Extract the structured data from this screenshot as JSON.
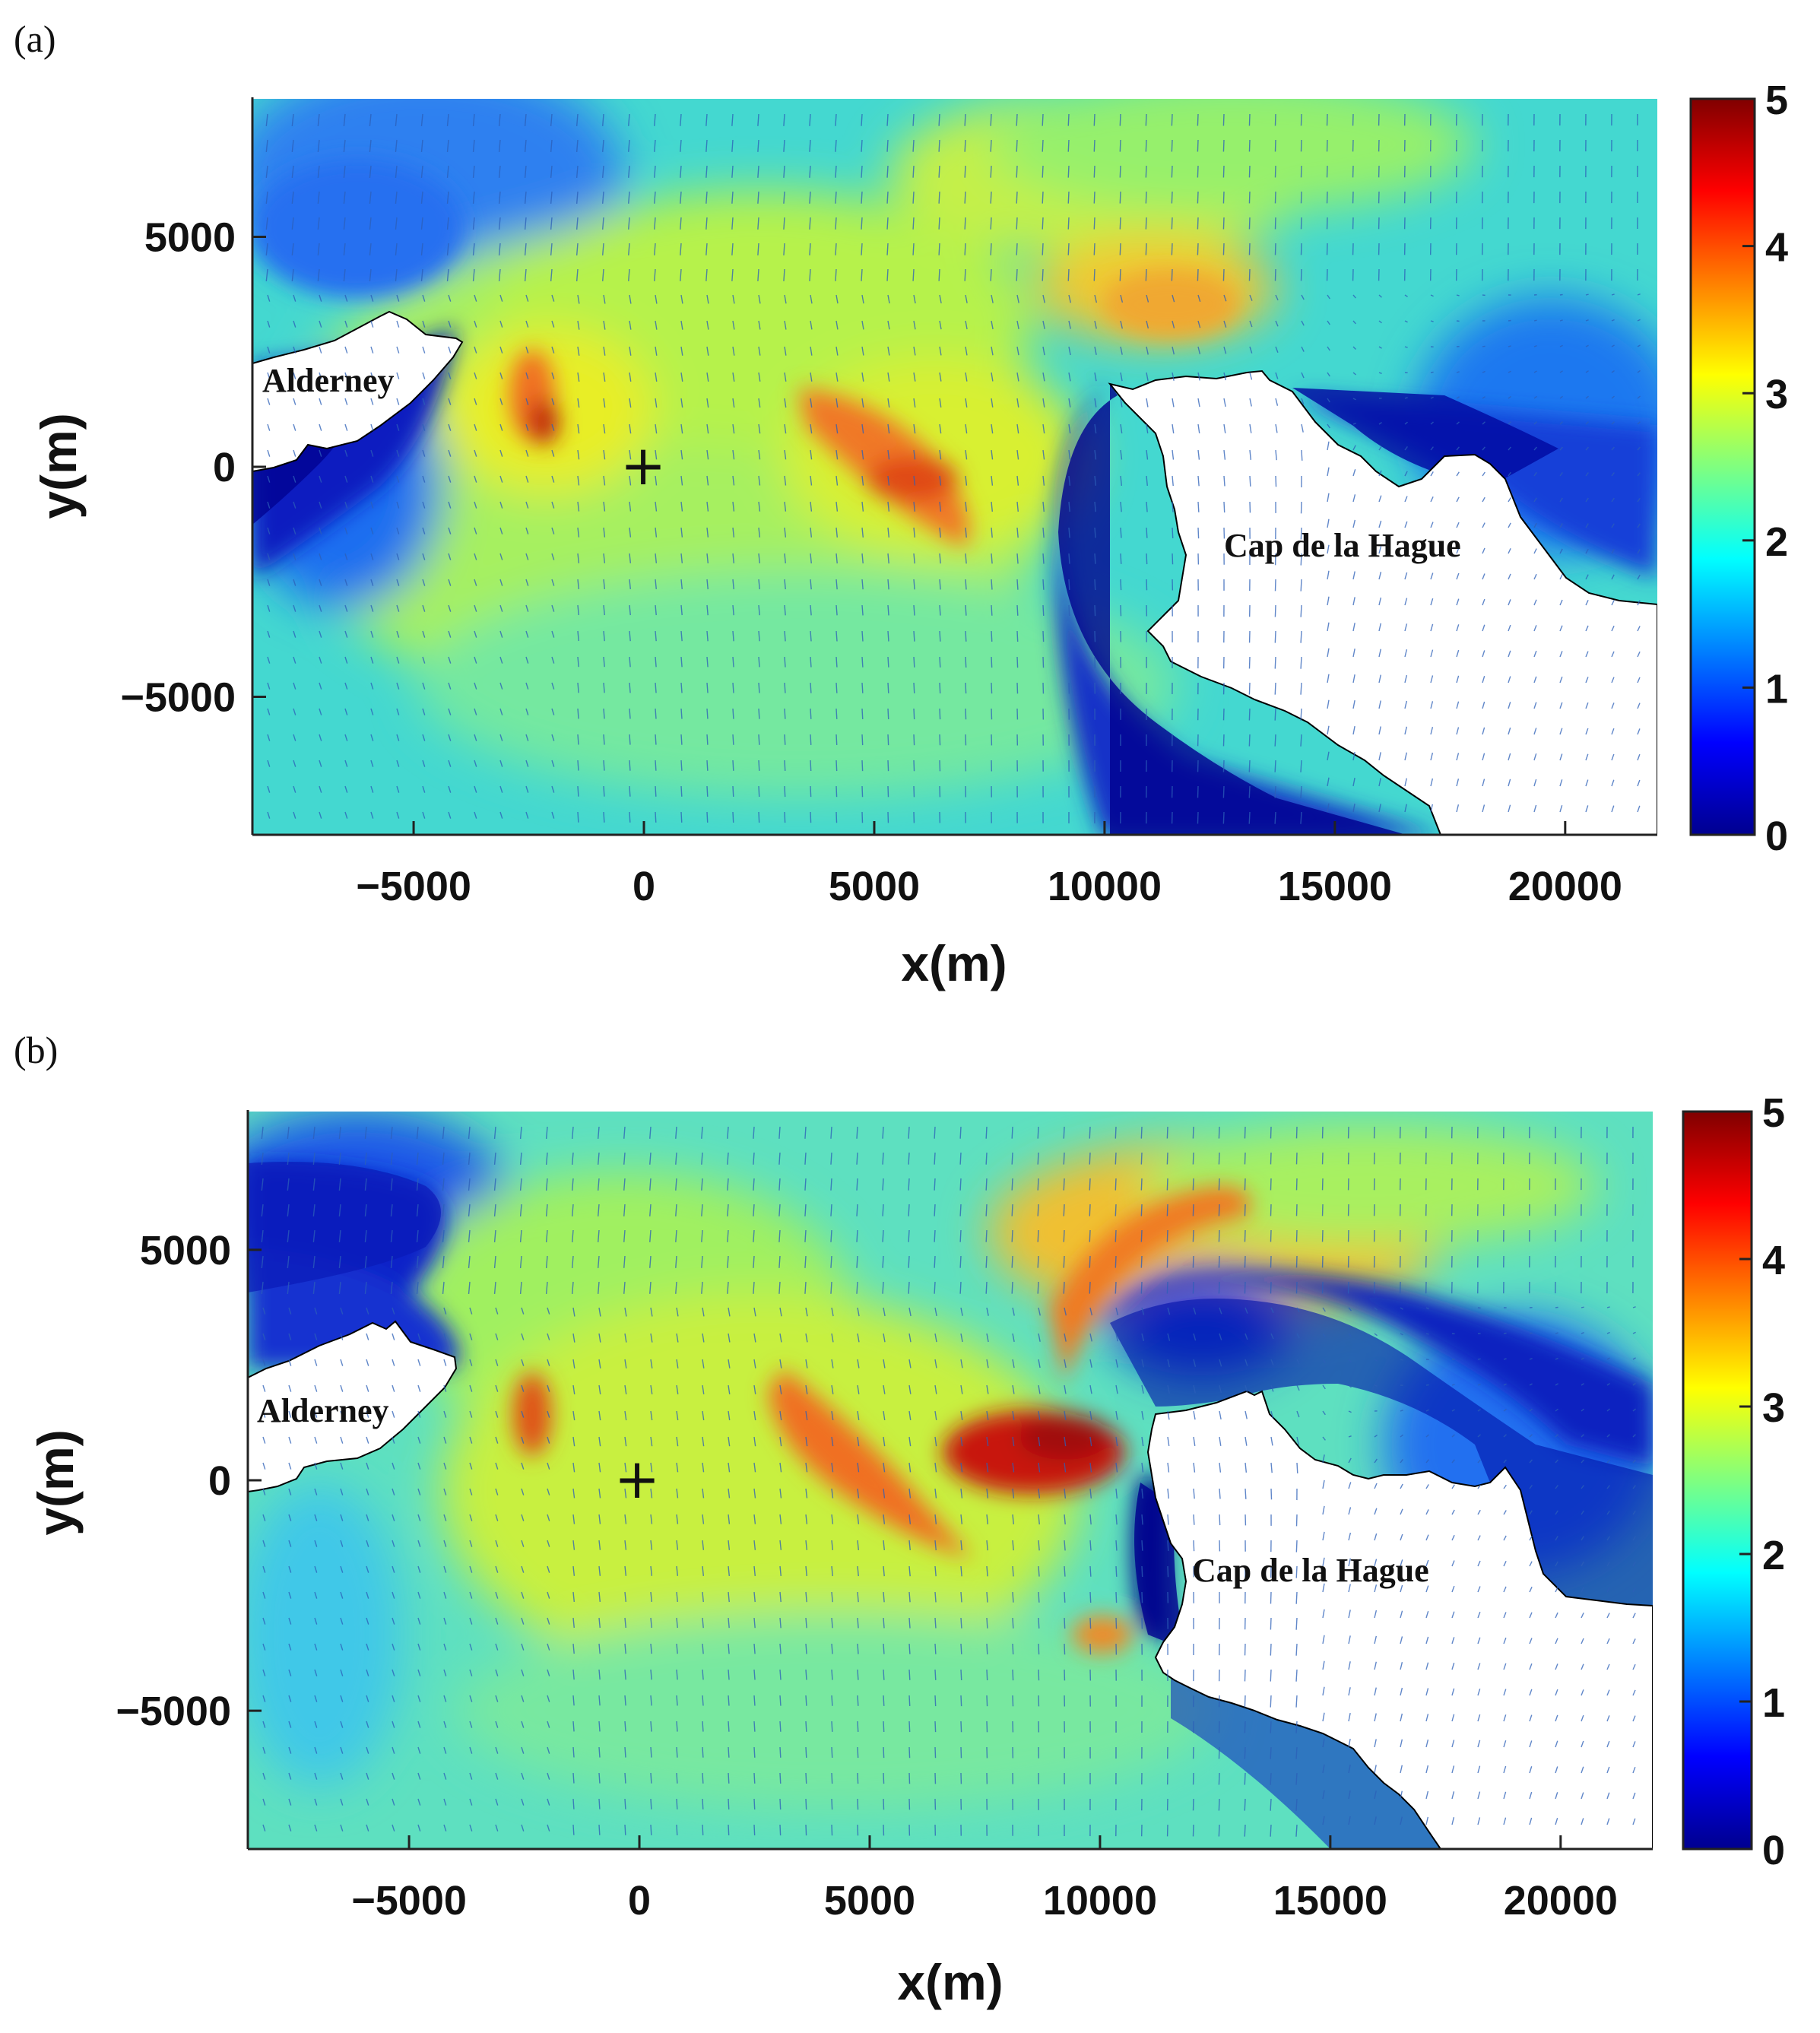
{
  "panels": [
    {
      "label": "(a)",
      "place_names": [
        "Alderney",
        "Cap de la Hague"
      ],
      "marker": "+"
    },
    {
      "label": "(b)",
      "place_names": [
        "Alderney",
        "Cap de la Hague"
      ],
      "marker": "+"
    }
  ],
  "chart_data": [
    {
      "type": "heatmap",
      "panel": "(a)",
      "xlabel": "x(m)",
      "ylabel": "y(m)",
      "xlim": [
        -8500,
        22000
      ],
      "ylim": [
        -8000,
        8000
      ],
      "xticks": [
        -5000,
        0,
        5000,
        10000,
        15000,
        20000
      ],
      "xtick_labels": [
        "−5000",
        "0",
        "5000",
        "10000",
        "15000",
        "20000"
      ],
      "yticks": [
        -5000,
        0,
        5000
      ],
      "ytick_labels": [
        "−5000",
        "0",
        "5000"
      ],
      "colorbar": {
        "min": 0,
        "max": 5,
        "ticks": [
          0,
          1,
          2,
          3,
          4,
          5
        ],
        "colormap": "jet"
      },
      "vectors": "quiver",
      "annotations": [
        {
          "text": "Alderney",
          "x": -6700,
          "y": 1900
        },
        {
          "text": "Cap de la Hague",
          "x": 15600,
          "y": -1700
        },
        {
          "text": "+",
          "x": 0,
          "y": 0
        }
      ]
    },
    {
      "type": "heatmap",
      "panel": "(b)",
      "xlabel": "x(m)",
      "ylabel": "y(m)",
      "xlim": [
        -8500,
        22000
      ],
      "ylim": [
        -8000,
        8000
      ],
      "xticks": [
        -5000,
        0,
        5000,
        10000,
        15000,
        20000
      ],
      "xtick_labels": [
        "−5000",
        "0",
        "5000",
        "10000",
        "15000",
        "20000"
      ],
      "yticks": [
        -5000,
        0,
        5000
      ],
      "ytick_labels": [
        "−5000",
        "0",
        "5000"
      ],
      "colorbar": {
        "min": 0,
        "max": 5,
        "ticks": [
          0,
          1,
          2,
          3,
          4,
          5
        ],
        "colormap": "jet"
      },
      "vectors": "quiver",
      "annotations": [
        {
          "text": "Alderney",
          "x": -6700,
          "y": 1600
        },
        {
          "text": "Cap de la Hague",
          "x": 15400,
          "y": -2000
        },
        {
          "text": "+",
          "x": 0,
          "y": 0
        }
      ]
    }
  ]
}
